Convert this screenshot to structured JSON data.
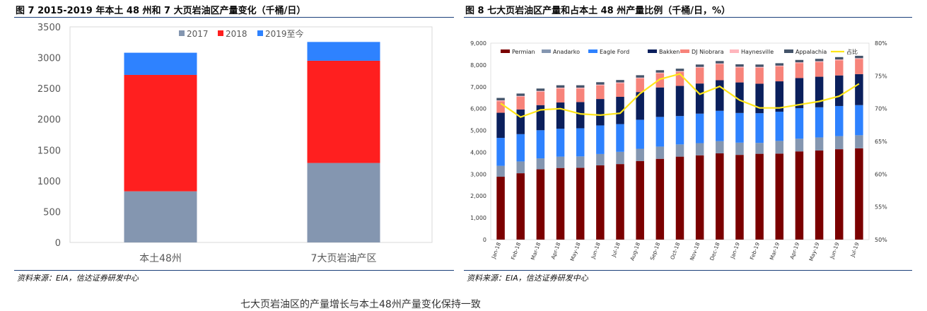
{
  "figure7": {
    "title": "图 7   2015-2019 年本土 48 州和 7 大页岩油区产量变化（千桶/日）",
    "source": "资料来源：EIA，信达证券研发中心"
  },
  "figure8": {
    "title": "图 8   七大页岩油区产量和占本土 48 州产量比例（千桶/日，%）",
    "source": "资料来源：EIA，信达证券研发中心"
  },
  "body_text": "七大页岩油区的产量增长与本土48州产量变化保持一致",
  "colors": {
    "2017": "#8496B0",
    "2018": "#FF1F1F",
    "2019至今": "#2E82FF",
    "Permian": "#7B0000",
    "Anadarko": "#8496B0",
    "Eagle Ford": "#2E82FF",
    "Bakken": "#0A1F5C",
    "DJ Niobrara": "#F7837A",
    "Haynesville": "#FFB6BD",
    "Appalachia": "#44546A",
    "占比": "#FFE61A"
  },
  "chart_data": [
    {
      "type": "bar",
      "stacked": true,
      "categories": [
        "本土48州",
        "7大页岩油产区"
      ],
      "series": [
        {
          "name": "2017",
          "values": [
            830,
            1290
          ]
        },
        {
          "name": "2018",
          "values": [
            1890,
            1660
          ]
        },
        {
          "name": "2019至今",
          "values": [
            360,
            305
          ]
        }
      ],
      "ylim": [
        0,
        3500
      ],
      "yticks": [
        "0",
        "500",
        "1000",
        "1500",
        "2000",
        "2500",
        "3000",
        "3500"
      ],
      "legend": "top-center",
      "grid": false
    },
    {
      "type": "bar",
      "stacked": true,
      "categories": [
        "Jan-18",
        "Feb-18",
        "Mar-18",
        "Apr-18",
        "May-18",
        "Jun-18",
        "Jul-18",
        "Aug-18",
        "Sep-18",
        "Oct-18",
        "Nov-18",
        "Dec-18",
        "Jan-19",
        "Feb-19",
        "Mar-19",
        "Apr-19",
        "May-19",
        "Jun-19",
        "Jul-19"
      ],
      "series": [
        {
          "name": "Permian",
          "values": [
            2880,
            3040,
            3220,
            3280,
            3290,
            3400,
            3460,
            3600,
            3700,
            3800,
            3860,
            3950,
            3880,
            3930,
            3940,
            4040,
            4080,
            4140,
            4180
          ]
        },
        {
          "name": "Anadarko",
          "values": [
            500,
            540,
            500,
            520,
            520,
            520,
            560,
            560,
            560,
            560,
            560,
            560,
            560,
            500,
            580,
            580,
            600,
            600,
            600
          ]
        },
        {
          "name": "Eagle Ford",
          "values": [
            1280,
            1250,
            1290,
            1280,
            1290,
            1310,
            1270,
            1330,
            1360,
            1300,
            1350,
            1390,
            1360,
            1360,
            1340,
            1400,
            1380,
            1380,
            1380
          ]
        },
        {
          "name": "Bakken",
          "values": [
            1150,
            1130,
            1150,
            1200,
            1200,
            1210,
            1250,
            1270,
            1350,
            1380,
            1380,
            1400,
            1400,
            1350,
            1390,
            1380,
            1400,
            1400,
            1420
          ]
        },
        {
          "name": "DJ Niobrara",
          "values": [
            530,
            580,
            610,
            640,
            620,
            620,
            620,
            620,
            640,
            640,
            720,
            730,
            680,
            730,
            680,
            680,
            670,
            690,
            690
          ]
        },
        {
          "name": "Haynesville",
          "values": [
            40,
            40,
            40,
            40,
            40,
            40,
            40,
            40,
            40,
            40,
            40,
            40,
            40,
            40,
            40,
            40,
            40,
            40,
            40
          ]
        },
        {
          "name": "Appalachia",
          "values": [
            110,
            110,
            110,
            110,
            110,
            110,
            110,
            110,
            110,
            110,
            110,
            110,
            110,
            110,
            110,
            110,
            110,
            110,
            110
          ]
        }
      ],
      "line_series": {
        "name": "占比",
        "axis": "right",
        "values": [
          70.8,
          68.7,
          69.8,
          70.0,
          69.2,
          69.0,
          69.3,
          72.3,
          74.5,
          75.3,
          72.2,
          73.4,
          71.3,
          70.1,
          70.1,
          70.6,
          71.1,
          71.9,
          73.8
        ]
      },
      "ylim": [
        0,
        9000
      ],
      "yticks": [
        "0",
        "1,000",
        "2,000",
        "3,000",
        "4,000",
        "5,000",
        "6,000",
        "7,000",
        "8,000",
        "9,000"
      ],
      "y2lim": [
        50,
        80
      ],
      "y2ticks": [
        "50%",
        "55%",
        "60%",
        "65%",
        "70%",
        "75%",
        "80%"
      ],
      "legend": "top",
      "grid": false
    }
  ]
}
